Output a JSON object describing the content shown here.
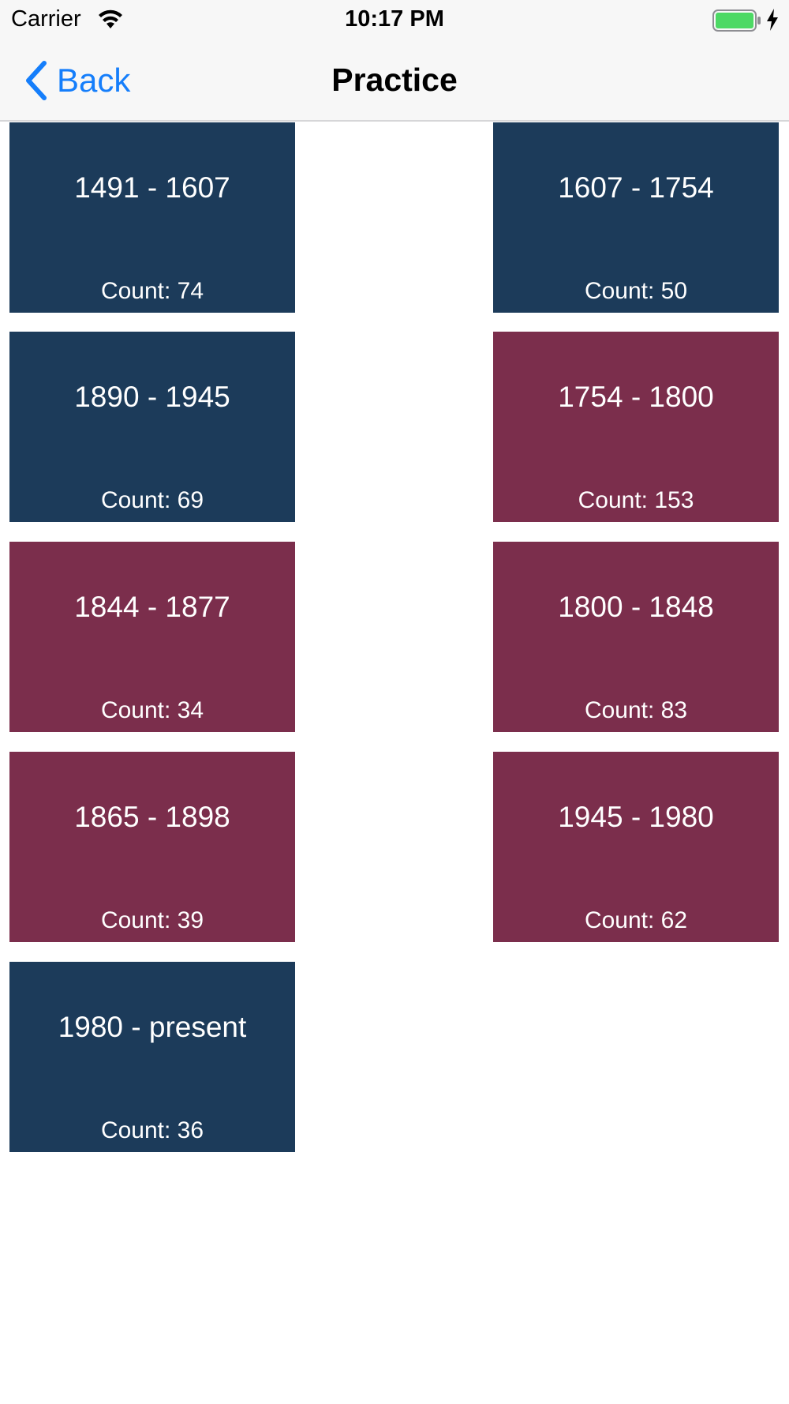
{
  "status_bar": {
    "carrier": "Carrier",
    "time": "10:17 PM",
    "icons": [
      "wifi-icon",
      "battery-icon",
      "charging-bolt-icon"
    ],
    "battery_color": "#4cd964"
  },
  "nav_bar": {
    "back_label": "Back",
    "title": "Practice",
    "accent_color": "#157efb"
  },
  "colors": {
    "tile_blue": "#1c3b5a",
    "tile_maroon": "#7b2e4c"
  },
  "tiles": [
    {
      "range": "1491 - 1607",
      "count": "Count: 74",
      "color": "blue"
    },
    {
      "range": "1607 - 1754",
      "count": "Count: 50",
      "color": "blue"
    },
    {
      "range": "1890 - 1945",
      "count": "Count: 69",
      "color": "blue"
    },
    {
      "range": "1754 - 1800",
      "count": "Count: 153",
      "color": "maroon"
    },
    {
      "range": "1844 - 1877",
      "count": "Count: 34",
      "color": "maroon"
    },
    {
      "range": "1800 - 1848",
      "count": "Count: 83",
      "color": "maroon"
    },
    {
      "range": "1865 - 1898",
      "count": "Count: 39",
      "color": "maroon"
    },
    {
      "range": "1945 - 1980",
      "count": "Count: 62",
      "color": "maroon"
    },
    {
      "range": "1980 - present",
      "count": "Count: 36",
      "color": "blue"
    }
  ]
}
